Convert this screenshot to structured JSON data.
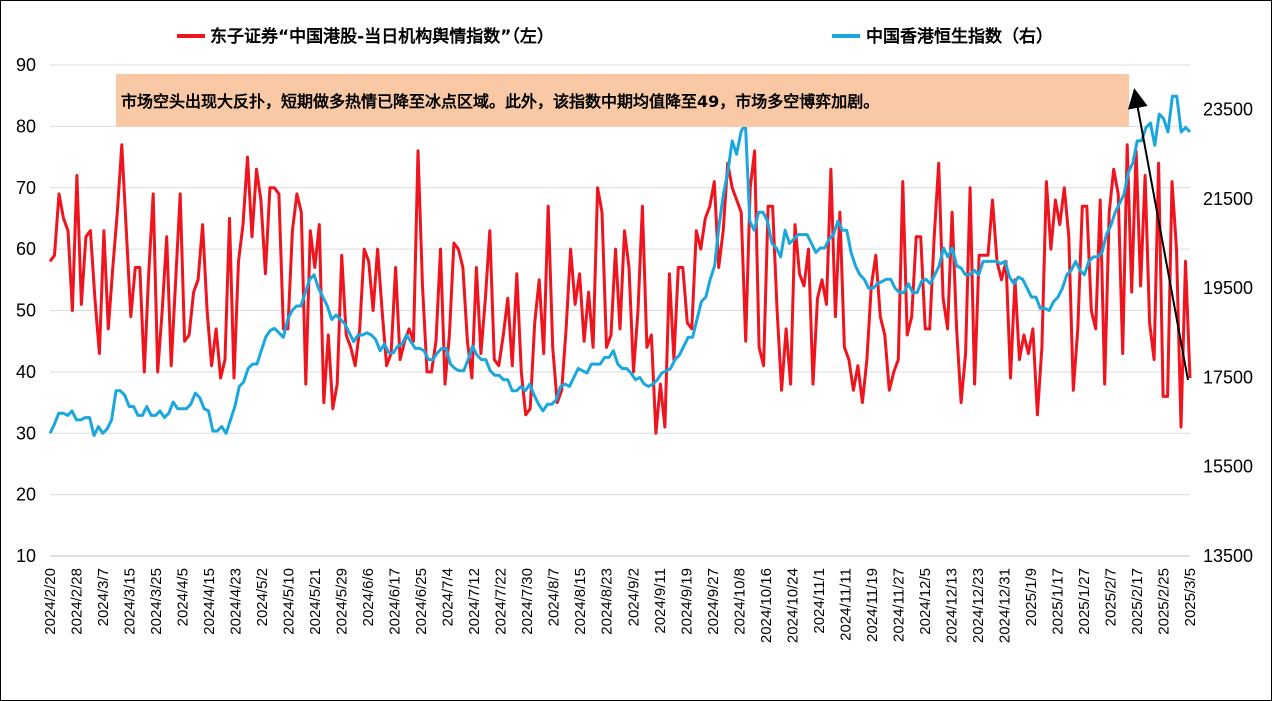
{
  "chart_data": {
    "type": "line",
    "colors": {
      "sentiment": "#f0141e",
      "hsi": "#1aa7de",
      "annotation_bg": "#f9c9a5",
      "grid": "#dcdcdc"
    },
    "legend": {
      "placement": "top",
      "items": [
        {
          "label": "东子证券“中国港股-当日机构舆情指数”（左）",
          "color": "#f0141e"
        },
        {
          "label": "中国香港恒生指数（右）",
          "color": "#1aa7de"
        }
      ]
    },
    "annotation": "市场空头出现大反扑，短期做多热情已降至冰点区域。此外，该指数中期均值降至49，市场多空博弈加剧。",
    "y_left": {
      "min": 10,
      "max": 90,
      "ticks": [
        "90",
        "80",
        "70",
        "60",
        "50",
        "40",
        "30",
        "20",
        "10"
      ]
    },
    "y_right": {
      "min": 13500,
      "max": 24500,
      "ticks": [
        "23500",
        "21500",
        "19500",
        "17500",
        "15500",
        "13500"
      ]
    },
    "x_labels": [
      "2024/2/20",
      "2024/2/28",
      "2024/3/7",
      "2024/3/15",
      "2024/3/25",
      "2024/4/5",
      "2024/4/15",
      "2024/4/23",
      "2024/5/2",
      "2024/5/10",
      "2024/5/21",
      "2024/5/29",
      "2024/6/6",
      "2024/6/17",
      "2024/6/25",
      "2024/7/4",
      "2024/7/12",
      "2024/7/22",
      "2024/7/30",
      "2024/8/7",
      "2024/8/15",
      "2024/8/23",
      "2024/9/2",
      "2024/9/11",
      "2024/9/19",
      "2024/9/27",
      "2024/10/8",
      "2024/10/16",
      "2024/10/24",
      "2024/11/1",
      "2024/11/11",
      "2024/11/19",
      "2024/11/27",
      "2024/12/5",
      "2024/12/13",
      "2024/12/23",
      "2024/12/31",
      "2025/1/9",
      "2025/1/17",
      "2025/1/27",
      "2025/2/7",
      "2025/2/17",
      "2025/2/25",
      "2025/3/5"
    ],
    "series": [
      {
        "name": "东子证券“中国港股-当日机构舆情指数”（左）",
        "axis": "left",
        "values": [
          58,
          59,
          69,
          65,
          63,
          50,
          72,
          51,
          62,
          63,
          52,
          43,
          63,
          47,
          57,
          66,
          77,
          63,
          49,
          57,
          57,
          40,
          56,
          69,
          40,
          50,
          62,
          41,
          55,
          69,
          45,
          46,
          53,
          55,
          64,
          50,
          41,
          47,
          39,
          42,
          65,
          39,
          58,
          64,
          75,
          62,
          73,
          68,
          56,
          70,
          70,
          69,
          47,
          47,
          63,
          69,
          66,
          38,
          63,
          57,
          64,
          35,
          46,
          34,
          38,
          59,
          46,
          44,
          41,
          47,
          60,
          58,
          50,
          60,
          50,
          41,
          43,
          57,
          42,
          45,
          47,
          45,
          76,
          54,
          40,
          40,
          45,
          60,
          38,
          46,
          61,
          60,
          57,
          45,
          39,
          57,
          43,
          52,
          63,
          42,
          41,
          46,
          52,
          41,
          56,
          40,
          33,
          34,
          48,
          55,
          43,
          67,
          44,
          35,
          37,
          47,
          60,
          51,
          56,
          45,
          53,
          44,
          70,
          66,
          44,
          46,
          60,
          47,
          63,
          57,
          40,
          50,
          67,
          44,
          46,
          30,
          38,
          31,
          56,
          42,
          57,
          57,
          48,
          47,
          63,
          60,
          65,
          67,
          71,
          57,
          63,
          74,
          70,
          68,
          66,
          45,
          70,
          76,
          44,
          41,
          67,
          67,
          50,
          37,
          47,
          38,
          64,
          56,
          54,
          60,
          38,
          52,
          55,
          51,
          73,
          49,
          66,
          44,
          42,
          37,
          41,
          35,
          42,
          54,
          59,
          49,
          46,
          37,
          40,
          42,
          71,
          46,
          49,
          62,
          62,
          47,
          47,
          62,
          74,
          52,
          47,
          66,
          47,
          35,
          43,
          70,
          38,
          59,
          59,
          59,
          68,
          58,
          55,
          58,
          39,
          55,
          42,
          46,
          43,
          47,
          33,
          44,
          71,
          60,
          68,
          64,
          70,
          62,
          37,
          47,
          67,
          67,
          50,
          47,
          68,
          38,
          66,
          73,
          69,
          43,
          77,
          53,
          76,
          54,
          72,
          48,
          42,
          74,
          36,
          36,
          71,
          60,
          31,
          58,
          39
        ]
      },
      {
        "name": "中国香港恒生指数（右）",
        "axis": "right",
        "values": [
          16250,
          16450,
          16700,
          16700,
          16650,
          16750,
          16550,
          16550,
          16600,
          16600,
          16200,
          16400,
          16250,
          16350,
          16550,
          17200,
          17200,
          17100,
          16850,
          16850,
          16650,
          16650,
          16850,
          16650,
          16650,
          16750,
          16600,
          16700,
          16950,
          16800,
          16800,
          16800,
          16900,
          17150,
          17050,
          16800,
          16750,
          16300,
          16300,
          16400,
          16250,
          16550,
          16850,
          17300,
          17400,
          17700,
          17800,
          17800,
          18100,
          18400,
          18550,
          18600,
          18500,
          18400,
          18800,
          19000,
          19100,
          19100,
          19400,
          19700,
          19800,
          19500,
          19300,
          19100,
          18800,
          18900,
          18800,
          18700,
          18500,
          18300,
          18450,
          18450,
          18500,
          18450,
          18350,
          18100,
          18250,
          18050,
          18050,
          18200,
          18250,
          18450,
          18300,
          18150,
          18150,
          18100,
          17900,
          17900,
          18050,
          18150,
          18150,
          17800,
          17700,
          17650,
          17650,
          17900,
          18200,
          18000,
          17900,
          17900,
          17650,
          17550,
          17550,
          17450,
          17450,
          17200,
          17200,
          17300,
          17200,
          17350,
          17100,
          16900,
          16750,
          16900,
          16900,
          17000,
          17300,
          17350,
          17300,
          17500,
          17700,
          17650,
          17600,
          17800,
          17800,
          17800,
          17950,
          17950,
          18100,
          17800,
          17700,
          17700,
          17600,
          17450,
          17500,
          17350,
          17300,
          17350,
          17450,
          17600,
          17650,
          17700,
          17900,
          18000,
          18200,
          18400,
          18400,
          18800,
          19200,
          19300,
          19700,
          20000,
          20900,
          21600,
          22100,
          22800,
          22500,
          23000,
          23200,
          21000,
          20800,
          21200,
          21200,
          21000,
          20500,
          20400,
          20200,
          20800,
          20500,
          20600,
          20700,
          20700,
          20700,
          20500,
          20300,
          20400,
          20400,
          20600,
          20700,
          21000,
          20800,
          20800,
          20300,
          20000,
          19800,
          19700,
          19500,
          19500,
          19600,
          19650,
          19700,
          19700,
          19500,
          19400,
          19400,
          19600,
          19400,
          19400,
          19650,
          19700,
          19600,
          19800,
          20000,
          20400,
          20200,
          20400,
          20000,
          19950,
          19800,
          19800,
          19900,
          19800,
          20100,
          20100,
          20100,
          20100,
          20050,
          20100,
          19750,
          19600,
          19750,
          19700,
          19500,
          19300,
          19300,
          19050,
          19050,
          19000,
          19200,
          19300,
          19500,
          19800,
          19900,
          20100,
          19900,
          19800,
          20100,
          20200,
          20200,
          20300,
          20700,
          20900,
          21200,
          21400,
          21600,
          22100,
          22300,
          22800,
          22800,
          23100,
          23200,
          22700,
          23400,
          23300,
          23000,
          23800,
          23800,
          23000,
          23100,
          23000
        ]
      }
    ]
  }
}
